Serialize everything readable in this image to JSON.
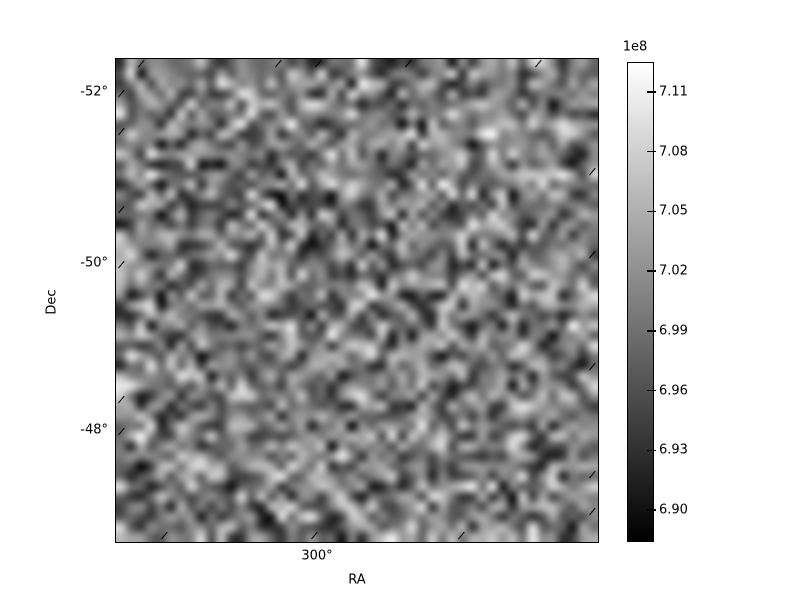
{
  "chart_data": {
    "type": "heatmap",
    "title": "",
    "xlabel": "RA",
    "ylabel": "Dec",
    "x_tick_labels": [
      "300°"
    ],
    "y_tick_labels": [
      "-52°",
      "-50°",
      "-48°"
    ],
    "colormap": "gray",
    "background": "#ffffff",
    "foreground": "#000000",
    "colorbar": {
      "offset_label": "1e8",
      "tick_labels": [
        "7.11",
        "7.08",
        "7.05",
        "7.02",
        "6.99",
        "6.96",
        "6.93",
        "6.90"
      ],
      "tick_values_1e8": [
        7.11,
        7.08,
        7.05,
        7.02,
        6.99,
        6.96,
        6.93,
        6.9
      ],
      "vmin_1e8": 6.885,
      "vmax_1e8": 7.125
    },
    "heatmap": {
      "rows": 48,
      "cols": 48,
      "seed": 1337,
      "interpolation": "bilinear",
      "description": "random grayscale field spanning the colorbar range 6.885e8 to 7.125e8"
    }
  }
}
